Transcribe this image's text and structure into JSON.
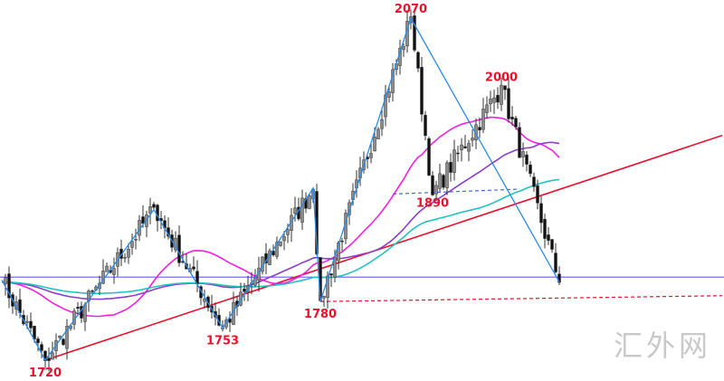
{
  "chart_data": {
    "type": "candlestick",
    "title": "",
    "xlabel": "",
    "ylabel": "",
    "ylim": [
      1700,
      2090
    ],
    "grid": false,
    "pivots": [
      {
        "bar": 0,
        "price": 1802
      },
      {
        "bar": 12,
        "price": 1720,
        "label": "1720"
      },
      {
        "bar": 42,
        "price": 1874
      },
      {
        "bar": 61,
        "price": 1753,
        "label": "1753"
      },
      {
        "bar": 86,
        "price": 1896
      },
      {
        "bar": 88,
        "price": 1780,
        "label": "1780"
      },
      {
        "bar": 113,
        "price": 2070,
        "label": "2070"
      },
      {
        "bar": 119,
        "price": 1890,
        "label": "1890"
      },
      {
        "bar": 138,
        "price": 2000,
        "label": "2000"
      },
      {
        "bar": 154,
        "price": 1800
      }
    ],
    "annotations": [
      "2070",
      "2000",
      "1890",
      "1780",
      "1753",
      "1720"
    ],
    "horizontal_line": {
      "price": 1805,
      "color": "#6a5cff"
    },
    "support_trendline": {
      "from": {
        "bar": 12,
        "price": 1720
      },
      "to": {
        "bar": 199,
        "price": 1950
      },
      "color": "#e8112d"
    },
    "dashed_support": {
      "from": {
        "bar": 88,
        "price": 1780
      },
      "to": {
        "bar": 199,
        "price": 1786
      },
      "color": "#e8112d"
    },
    "neckline_1890": {
      "from": {
        "bar": 108,
        "price": 1890
      },
      "to": {
        "bar": 143,
        "price": 1895
      },
      "color": "#3a6fd8"
    },
    "moving_averages": [
      {
        "period": 30,
        "color": "#ee22dd"
      },
      {
        "period": 60,
        "color": "#8a3fc4"
      },
      {
        "period": 90,
        "color": "#22c2c0"
      }
    ],
    "zigzag_color": "#2a8ae6",
    "up_color": "#8c8c8c",
    "down_color": "#111111"
  },
  "watermark": "汇外网"
}
